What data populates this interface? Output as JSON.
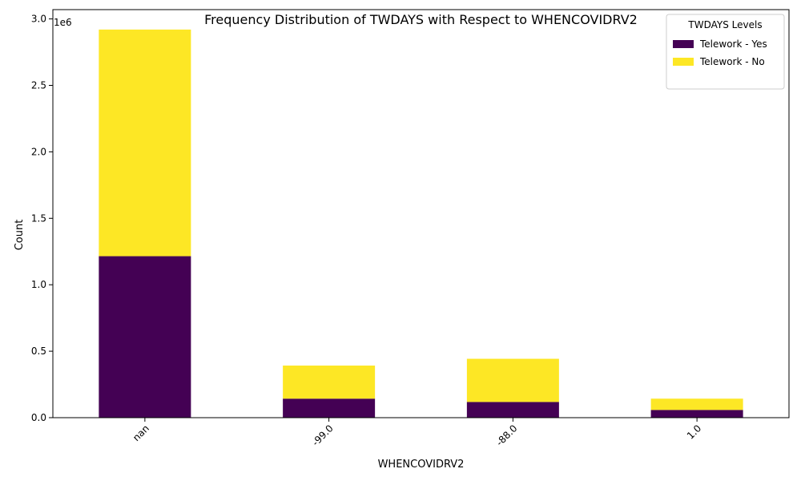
{
  "chart_data": {
    "type": "bar",
    "stacked": true,
    "title": "Frequency Distribution of TWDAYS with Respect to WHENCOVIDRV2",
    "xlabel": "WHENCOVIDRV2",
    "ylabel": "Count",
    "y_offset_label": "1e6",
    "categories": [
      "nan",
      "-99.0",
      "-88.0",
      "1.0"
    ],
    "series": [
      {
        "name": "Telework - Yes",
        "color": "#440154",
        "values": [
          1215000,
          143000,
          118000,
          58000
        ]
      },
      {
        "name": "Telework - No",
        "color": "#fde725",
        "values": [
          1705000,
          249000,
          325000,
          85000
        ]
      }
    ],
    "ylim": [
      0,
      3070000
    ],
    "yticks": [
      0,
      500000,
      1000000,
      1500000,
      2000000,
      2500000,
      3000000
    ],
    "ytick_labels": [
      "0.0",
      "0.5",
      "1.0",
      "1.5",
      "2.0",
      "2.5",
      "3.0"
    ],
    "xtick_rotation": 45,
    "legend": {
      "title": "TWDAYS Levels",
      "placement": "top-right"
    },
    "grid": false
  }
}
